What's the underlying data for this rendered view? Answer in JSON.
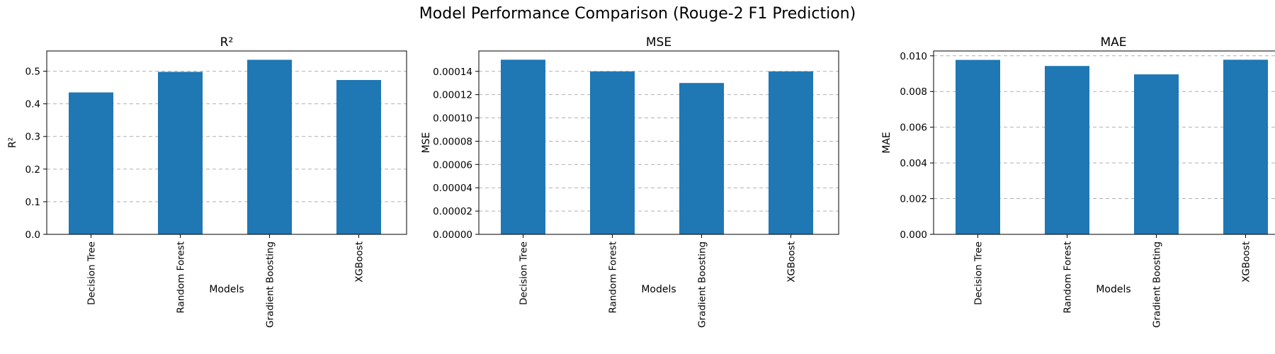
{
  "figure": {
    "title": "Model Performance Comparison (Rouge-2 F1 Prediction)"
  },
  "chart_data": [
    {
      "type": "bar",
      "title": "R²",
      "xlabel": "Models",
      "ylabel": "R²",
      "categories": [
        "Decision Tree",
        "Random Forest",
        "Gradient Boosting",
        "XGBoost"
      ],
      "values": [
        0.435,
        0.498,
        0.535,
        0.473
      ],
      "ylim": [
        0,
        0.562
      ],
      "yticks": [
        0,
        0.1,
        0.2,
        0.3,
        0.4,
        0.5
      ],
      "ytick_labels": [
        "0.0",
        "0.1",
        "0.2",
        "0.3",
        "0.4",
        "0.5"
      ],
      "color": "#1f77b4",
      "grid": "y, dashed"
    },
    {
      "type": "bar",
      "title": "MSE",
      "xlabel": "Models",
      "ylabel": "MSE",
      "categories": [
        "Decision Tree",
        "Random Forest",
        "Gradient Boosting",
        "XGBoost"
      ],
      "values": [
        0.00015,
        0.00014,
        0.00013,
        0.00014
      ],
      "ylim": [
        0,
        0.0001575
      ],
      "yticks": [
        0,
        2e-05,
        4e-05,
        6e-05,
        8e-05,
        0.0001,
        0.00012,
        0.00014
      ],
      "ytick_labels": [
        "0.00000",
        "0.00002",
        "0.00004",
        "0.00006",
        "0.00008",
        "0.00010",
        "0.00012",
        "0.00014"
      ],
      "color": "#1f77b4",
      "grid": "y, dashed"
    },
    {
      "type": "bar",
      "title": "MAE",
      "xlabel": "Models",
      "ylabel": "MAE",
      "categories": [
        "Decision Tree",
        "Random Forest",
        "Gradient Boosting",
        "XGBoost"
      ],
      "values": [
        0.00977,
        0.00943,
        0.00896,
        0.00978
      ],
      "ylim": [
        0,
        0.01027
      ],
      "yticks": [
        0,
        0.002,
        0.004,
        0.006,
        0.008,
        0.01
      ],
      "ytick_labels": [
        "0.000",
        "0.002",
        "0.004",
        "0.006",
        "0.008",
        "0.010"
      ],
      "color": "#1f77b4",
      "grid": "y, dashed"
    }
  ]
}
